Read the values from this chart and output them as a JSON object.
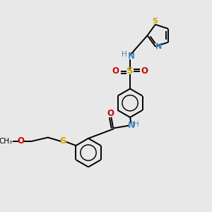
{
  "bg_color": "#e8e8e8",
  "atom_colors": {
    "C": "#000000",
    "N": "#4488bb",
    "O": "#cc0000",
    "S": "#ccaa00",
    "H": "#888888"
  },
  "figsize": [
    3.0,
    3.0
  ],
  "dpi": 100,
  "scale": 1.0
}
